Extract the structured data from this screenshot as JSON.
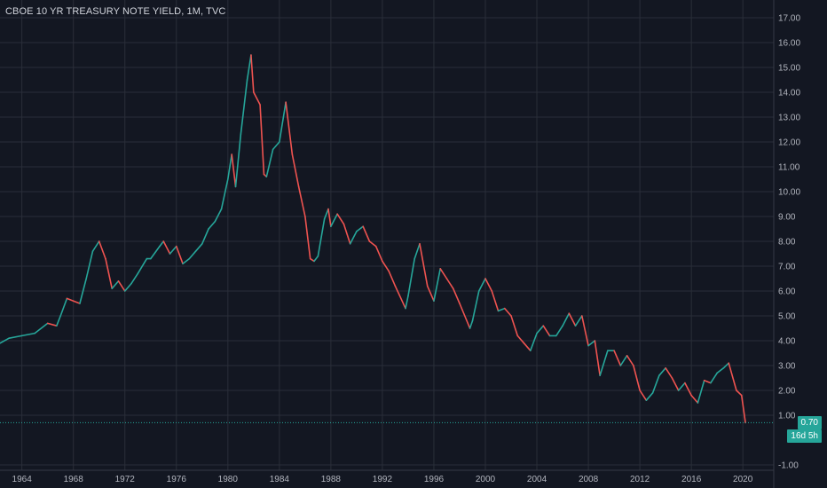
{
  "title": "CBOE 10 YR TREASURY NOTE YIELD, 1M, TVC",
  "current_price_label": "0.70",
  "countdown_label": "16d 5h",
  "colors": {
    "background": "#131722",
    "grid": "#2a2e39",
    "up": "#26a69a",
    "down": "#ef5350",
    "price_line": "#26a69a",
    "text": "#b2b5be"
  },
  "chart_data": {
    "type": "line",
    "title": "CBOE 10 YR TREASURY NOTE YIELD, 1M, TVC",
    "xlabel": "",
    "ylabel": "",
    "x_ticks": [
      "1964",
      "1968",
      "1972",
      "1976",
      "1980",
      "1984",
      "1988",
      "1992",
      "1996",
      "2000",
      "2004",
      "2008",
      "2012",
      "2016",
      "2020"
    ],
    "y_ticks": [
      "17.00",
      "16.00",
      "15.00",
      "14.00",
      "13.00",
      "12.00",
      "11.00",
      "10.00",
      "9.00",
      "8.00",
      "7.00",
      "6.00",
      "5.00",
      "4.00",
      "3.00",
      "2.00",
      "1.00",
      "-1.00"
    ],
    "xlim": [
      1962.3,
      2022.4
    ],
    "ylim": [
      -1.0,
      17.0
    ],
    "grid": true,
    "series": [
      {
        "x": [
          1962.3,
          1963.0,
          1964.0,
          1965.0,
          1966.0,
          1966.7,
          1967.0,
          1967.5,
          1968.0,
          1968.5,
          1969.0,
          1969.5,
          1970.0,
          1970.5,
          1971.0,
          1971.5,
          1972.0,
          1972.5,
          1973.0,
          1973.7,
          1974.0,
          1974.7,
          1975.0,
          1975.5,
          1976.0,
          1976.5,
          1977.0,
          1977.5,
          1978.0,
          1978.5,
          1979.0,
          1979.5,
          1980.0,
          1980.3,
          1980.6,
          1981.0,
          1981.5,
          1981.8,
          1982.0,
          1982.5,
          1982.8,
          1983.0,
          1983.5,
          1984.0,
          1984.5,
          1985.0,
          1985.5,
          1986.0,
          1986.4,
          1986.7,
          1987.0,
          1987.5,
          1987.8,
          1988.0,
          1988.5,
          1989.0,
          1989.5,
          1990.0,
          1990.5,
          1991.0,
          1991.5,
          1992.0,
          1992.5,
          1993.0,
          1993.8,
          1994.0,
          1994.5,
          1994.9,
          1995.5,
          1996.0,
          1996.5,
          1997.0,
          1997.5,
          1998.0,
          1998.8,
          1999.0,
          1999.5,
          2000.0,
          2000.5,
          2001.0,
          2001.5,
          2002.0,
          2002.5,
          2003.0,
          2003.5,
          2004.0,
          2004.5,
          2005.0,
          2005.5,
          2006.0,
          2006.5,
          2007.0,
          2007.5,
          2008.0,
          2008.5,
          2008.9,
          2009.5,
          2010.0,
          2010.5,
          2011.0,
          2011.5,
          2012.0,
          2012.5,
          2013.0,
          2013.5,
          2014.0,
          2014.5,
          2015.0,
          2015.5,
          2016.0,
          2016.5,
          2017.0,
          2017.5,
          2018.0,
          2018.5,
          2018.9,
          2019.5,
          2019.9,
          2020.2
        ],
        "values": [
          3.9,
          4.1,
          4.2,
          4.3,
          4.7,
          4.6,
          5.0,
          5.7,
          5.6,
          5.5,
          6.5,
          7.6,
          8.0,
          7.3,
          6.1,
          6.4,
          6.0,
          6.3,
          6.7,
          7.3,
          7.3,
          7.8,
          8.0,
          7.5,
          7.8,
          7.1,
          7.3,
          7.6,
          7.9,
          8.5,
          8.8,
          9.3,
          10.5,
          11.5,
          10.2,
          12.3,
          14.5,
          15.5,
          14.0,
          13.5,
          10.7,
          10.6,
          11.7,
          12.0,
          13.6,
          11.5,
          10.2,
          9.0,
          7.3,
          7.2,
          7.4,
          8.9,
          9.3,
          8.6,
          9.1,
          8.7,
          7.9,
          8.4,
          8.6,
          8.0,
          7.8,
          7.2,
          6.8,
          6.2,
          5.3,
          5.8,
          7.3,
          7.9,
          6.2,
          5.6,
          6.9,
          6.5,
          6.1,
          5.5,
          4.5,
          4.8,
          6.0,
          6.5,
          6.0,
          5.2,
          5.3,
          5.0,
          4.2,
          3.9,
          3.6,
          4.3,
          4.6,
          4.2,
          4.2,
          4.6,
          5.1,
          4.6,
          5.0,
          3.8,
          4.0,
          2.6,
          3.6,
          3.6,
          3.0,
          3.4,
          3.0,
          2.0,
          1.6,
          1.9,
          2.6,
          2.9,
          2.5,
          2.0,
          2.3,
          1.8,
          1.5,
          2.4,
          2.3,
          2.7,
          2.9,
          3.1,
          2.0,
          1.8,
          0.7
        ]
      }
    ]
  }
}
